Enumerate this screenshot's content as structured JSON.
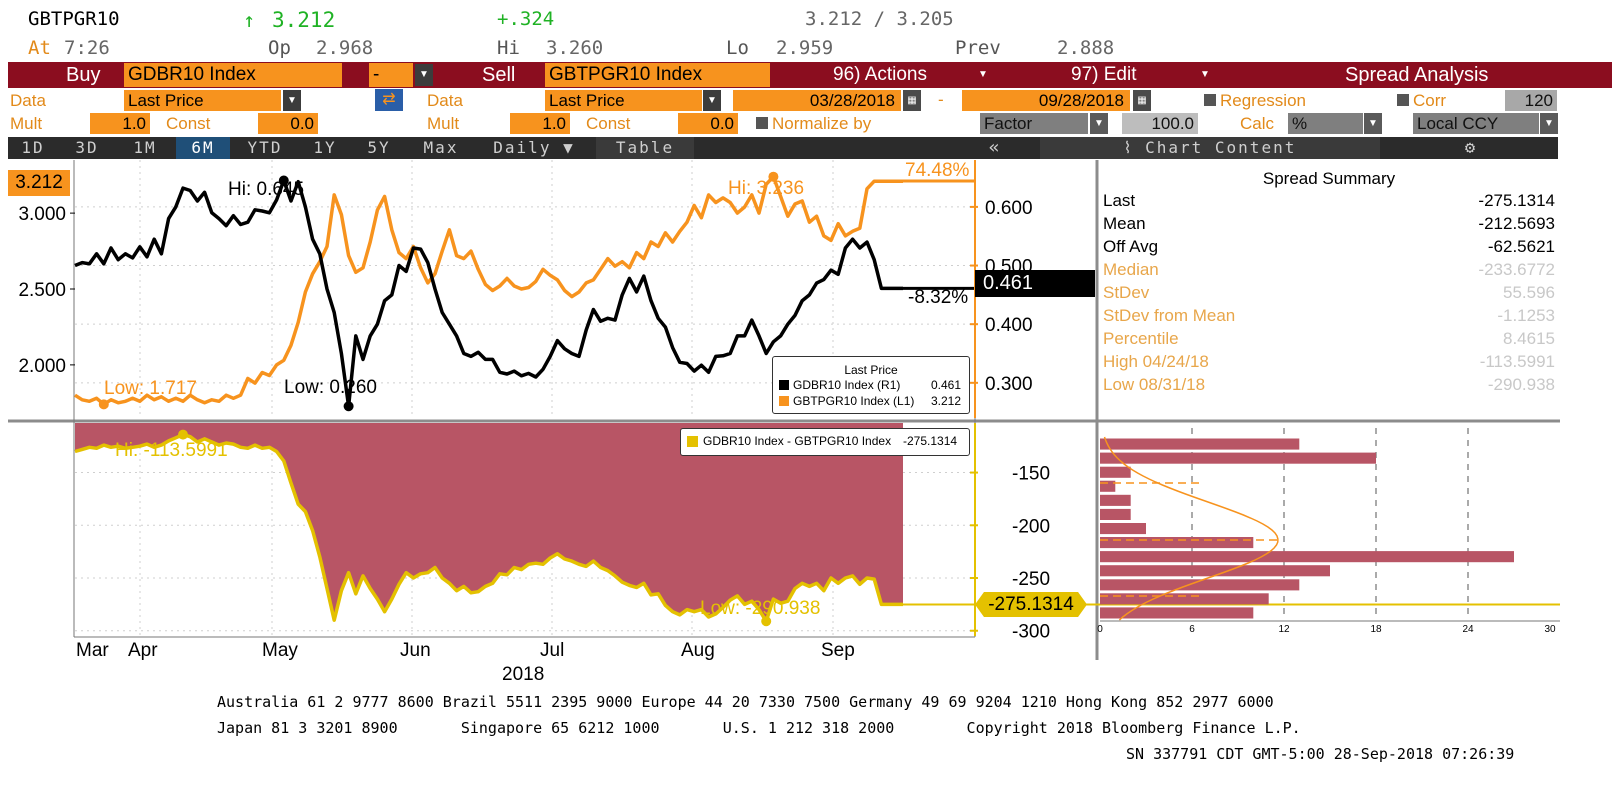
{
  "quote": {
    "ticker": "GBTPGR10",
    "arrow": "↑",
    "price": "3.212",
    "change": "+.324",
    "bid_ask": "3.212 / 3.205",
    "at_label": "At",
    "time": "7:26",
    "op_label": "Op",
    "open": "2.968",
    "hi_label": "Hi",
    "high": "3.260",
    "lo_label": "Lo",
    "low": "2.959",
    "prev_label": "Prev",
    "prev": "2.888"
  },
  "toolbar": {
    "buy_label": "Buy",
    "buy_security": "GDBR10 Index",
    "operator": "-",
    "sell_label": "Sell",
    "sell_security": "GBTPGR10 Index",
    "actions": "96) Actions",
    "edit": "97) Edit",
    "title": "Spread Analysis"
  },
  "row2": {
    "data_label": "Data",
    "buy_data": "Last Price",
    "sell_data_label": "Data",
    "sell_data": "Last Price",
    "start_date": "03/28/2018",
    "dash": "-",
    "end_date": "09/28/2018",
    "regression": "Regression",
    "corr": "Corr",
    "corr_value": "120"
  },
  "row3": {
    "mult_label": "Mult",
    "buy_mult": "1.0",
    "const_label": "Const",
    "buy_const": "0.0",
    "sell_mult_label": "Mult",
    "sell_mult": "1.0",
    "sell_const_label": "Const",
    "sell_const": "0.0",
    "normalize": "Normalize by",
    "factor": "Factor",
    "factor_value": "100.0",
    "calc_label": "Calc",
    "calc_value": "%",
    "ccy": "Local CCY"
  },
  "tabs": [
    "1D",
    "3D",
    "1M",
    "6M",
    "YTD",
    "1Y",
    "5Y",
    "Max",
    "Daily ▼",
    "Table"
  ],
  "selected_tab": "6M",
  "chart_tools": {
    "collapse": "«",
    "content": "Chart Content",
    "settings_icon": "gear-icon"
  },
  "summary": {
    "title": "Spread Summary",
    "rows": [
      {
        "k": "Last",
        "v": "-275.1314",
        "style": "black"
      },
      {
        "k": "Mean",
        "v": "-212.5693",
        "style": "black"
      },
      {
        "k": "Off Avg",
        "v": "-62.5621",
        "style": "black"
      },
      {
        "k": "Median",
        "v": "-233.6772",
        "style": "faded"
      },
      {
        "k": "StDev",
        "v": "55.596",
        "style": "faded"
      },
      {
        "k": "StDev from Mean",
        "v": "-1.1253",
        "style": "faded"
      },
      {
        "k": "Percentile",
        "v": "8.4615",
        "style": "faded"
      },
      {
        "k": "High 04/24/18",
        "v": "-113.5991",
        "style": "faded"
      },
      {
        "k": "Low 08/31/18",
        "v": "-290.938",
        "style": "faded"
      }
    ]
  },
  "chart_data": [
    {
      "type": "line",
      "series": [
        {
          "name": "GDBR10 Index (R1)",
          "last": "0.461",
          "color": "#000000",
          "axis": "right"
        },
        {
          "name": "GBTPGR10 Index (L1)",
          "last": "3.212",
          "color": "#f7931e",
          "axis": "left"
        }
      ],
      "legend_title": "Last Price",
      "legend_position": "bottom-right",
      "left_ticks": [
        "3.000",
        "2.500",
        "2.000"
      ],
      "right_ticks": [
        "0.600",
        "0.500",
        "0.400",
        "0.300"
      ],
      "left_last_badge": "3.212",
      "right_last_badge": "0.461",
      "pct_change_black": "-8.32%",
      "pct_change_orange": "74.48%",
      "annotations": {
        "black_hi": "Hi: 0.645",
        "black_low": "Low: 0.260",
        "orange_hi": "Hi: 3.236",
        "orange_low": "Low: 1.717"
      },
      "x_months": [
        "Mar",
        "Apr",
        "May",
        "Jun",
        "Jul",
        "Aug",
        "Sep"
      ],
      "x_year": "2018",
      "ylim_left": [
        1.65,
        3.35
      ],
      "ylim_right": [
        0.24,
        0.68
      ],
      "orange_values": [
        1.8,
        1.77,
        1.76,
        1.78,
        1.74,
        1.77,
        1.75,
        1.76,
        1.78,
        1.76,
        1.8,
        1.77,
        1.79,
        1.76,
        1.78,
        1.76,
        1.8,
        1.77,
        1.75,
        1.77,
        1.76,
        1.8,
        1.78,
        1.8,
        1.91,
        1.88,
        1.95,
        1.93,
        2.0,
        2.03,
        2.13,
        2.28,
        2.48,
        2.6,
        2.68,
        2.78,
        3.12,
        2.99,
        2.72,
        2.61,
        2.64,
        2.81,
        3.02,
        3.11,
        2.89,
        2.74,
        2.7,
        2.78,
        2.64,
        2.54,
        2.6,
        2.75,
        2.89,
        2.72,
        2.7,
        2.75,
        2.63,
        2.53,
        2.49,
        2.52,
        2.57,
        2.52,
        2.5,
        2.51,
        2.55,
        2.63,
        2.59,
        2.56,
        2.49,
        2.45,
        2.48,
        2.54,
        2.56,
        2.63,
        2.7,
        2.65,
        2.68,
        2.64,
        2.74,
        2.7,
        2.81,
        2.78,
        2.87,
        2.81,
        2.88,
        2.94,
        3.05,
        2.97,
        3.12,
        3.07,
        3.1,
        3.07,
        3.0,
        3.04,
        3.12,
        3.0,
        3.19,
        3.24,
        3.11,
        2.98,
        3.06,
        3.08,
        2.94,
        2.98,
        2.85,
        2.82,
        2.93,
        2.85,
        2.88,
        2.9,
        3.16,
        3.21,
        3.21,
        3.21,
        3.21,
        3.21
      ],
      "black_values": [
        0.5,
        0.505,
        0.503,
        0.52,
        0.503,
        0.53,
        0.51,
        0.52,
        0.513,
        0.532,
        0.515,
        0.545,
        0.52,
        0.58,
        0.6,
        0.632,
        0.628,
        0.61,
        0.625,
        0.59,
        0.58,
        0.568,
        0.585,
        0.57,
        0.574,
        0.595,
        0.593,
        0.59,
        0.612,
        0.645,
        0.61,
        0.643,
        0.6,
        0.545,
        0.52,
        0.46,
        0.42,
        0.35,
        0.26,
        0.38,
        0.34,
        0.38,
        0.4,
        0.44,
        0.45,
        0.5,
        0.49,
        0.53,
        0.528,
        0.505,
        0.46,
        0.42,
        0.4,
        0.38,
        0.35,
        0.345,
        0.352,
        0.34,
        0.34,
        0.318,
        0.315,
        0.32,
        0.312,
        0.316,
        0.31,
        0.323,
        0.345,
        0.372,
        0.358,
        0.35,
        0.345,
        0.39,
        0.425,
        0.405,
        0.41,
        0.407,
        0.45,
        0.478,
        0.455,
        0.482,
        0.44,
        0.41,
        0.395,
        0.36,
        0.335,
        0.333,
        0.32,
        0.33,
        0.318,
        0.345,
        0.346,
        0.35,
        0.38,
        0.38,
        0.407,
        0.38,
        0.35,
        0.37,
        0.38,
        0.4,
        0.415,
        0.44,
        0.45,
        0.47,
        0.476,
        0.492,
        0.485,
        0.53,
        0.545,
        0.53,
        0.54,
        0.51,
        0.461,
        0.461,
        0.461,
        0.461
      ]
    },
    {
      "type": "area",
      "series": [
        {
          "name": "GDBR10 Index - GBTPGR10 Index",
          "last": "-275.1314",
          "color": "#e4c100"
        }
      ],
      "legend_position": "top-right",
      "y_ticks": [
        "-150",
        "-200",
        "-250",
        "-300"
      ],
      "last_badge": "-275.1314",
      "annotations": {
        "hi": "Hi: -113.5991",
        "low": "Low: -290.938"
      },
      "ylim": [
        -305,
        -103
      ],
      "values": [
        -130,
        -128,
        -126,
        -127,
        -124,
        -126,
        -125,
        -127,
        -126,
        -125,
        -123,
        -126,
        -124,
        -120,
        -117,
        -114,
        -116,
        -121,
        -118,
        -121,
        -124,
        -122,
        -123,
        -126,
        -127,
        -124,
        -127,
        -126,
        -130,
        -139,
        -160,
        -180,
        -187,
        -205,
        -230,
        -260,
        -290,
        -262,
        -245,
        -265,
        -248,
        -260,
        -270,
        -282,
        -270,
        -256,
        -245,
        -250,
        -246,
        -245,
        -240,
        -250,
        -255,
        -262,
        -258,
        -264,
        -263,
        -258,
        -255,
        -246,
        -247,
        -240,
        -242,
        -237,
        -236,
        -237,
        -231,
        -227,
        -232,
        -234,
        -237,
        -239,
        -234,
        -240,
        -243,
        -248,
        -254,
        -257,
        -259,
        -255,
        -266,
        -265,
        -276,
        -282,
        -285,
        -280,
        -282,
        -280,
        -287,
        -284,
        -278,
        -271,
        -267,
        -275,
        -272,
        -280,
        -291,
        -270,
        -274,
        -272,
        -260,
        -255,
        -258,
        -255,
        -262,
        -250,
        -255,
        -250,
        -248,
        -256,
        -250,
        -251,
        -275,
        -275,
        -275,
        -275
      ]
    },
    {
      "type": "bar",
      "orientation": "horizontal",
      "x_ticks": [
        "0",
        "6",
        "12",
        "18",
        "24",
        "30"
      ],
      "xlim": [
        0,
        30
      ],
      "values": [
        13,
        18,
        2,
        1,
        2,
        2,
        3,
        10,
        27,
        15,
        13,
        11,
        10
      ]
    }
  ],
  "footer": {
    "line1": "Australia 61 2 9777 8600 Brazil 5511 2395 9000 Europe 44 20 7330 7500 Germany 49 69 9204 1210 Hong Kong 852 2977 6000",
    "line2": "Japan 81 3 3201 8900       Singapore 65 6212 1000       U.S. 1 212 318 2000        Copyright 2018 Bloomberg Finance L.P.",
    "line3": "SN 337791 CDT  GMT-5:00 28-Sep-2018 07:26:39"
  },
  "colors": {
    "bar": "#8b0d1f",
    "orange": "#f7931e",
    "spread_fill": "#b85565",
    "spread_line": "#e4c100"
  }
}
